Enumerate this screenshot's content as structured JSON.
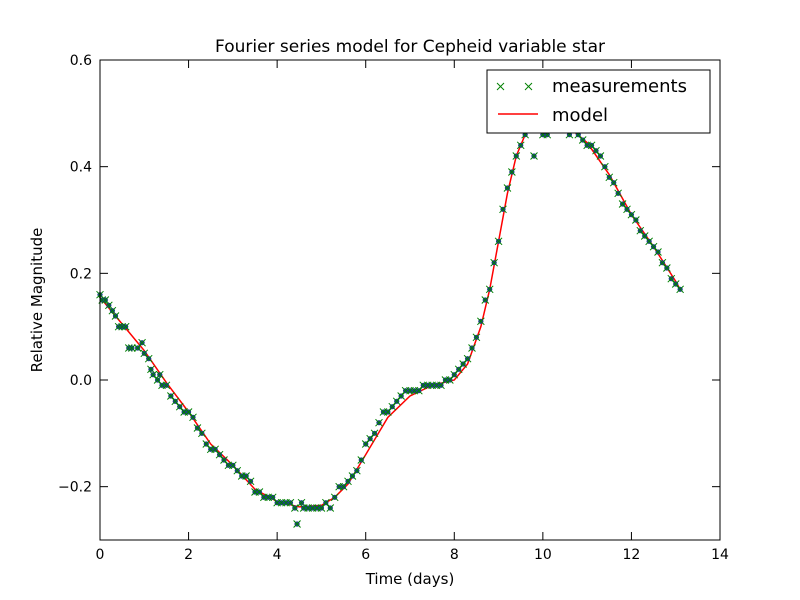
{
  "chart_data": {
    "type": "scatter",
    "title": "Fourier series model for Cepheid variable star",
    "xlabel": "Time (days)",
    "ylabel": "Relative Magnitude",
    "xlim": [
      0,
      14
    ],
    "ylim": [
      -0.3,
      0.6
    ],
    "xticks": [
      0,
      2,
      4,
      6,
      8,
      10,
      12,
      14
    ],
    "xtick_labels": [
      "0",
      "2",
      "4",
      "6",
      "8",
      "10",
      "12",
      "14"
    ],
    "yticks": [
      -0.2,
      0.0,
      0.2,
      0.4,
      0.6
    ],
    "ytick_labels": [
      "−0.2",
      "0.0",
      "0.2",
      "0.4",
      "0.6"
    ],
    "grid": false,
    "legend_position": "top-right",
    "series": [
      {
        "name": "measurements",
        "style": "markers",
        "marker": "x",
        "color": "#008000",
        "points": [
          [
            0.0,
            0.16
          ],
          [
            0.05,
            0.15
          ],
          [
            0.12,
            0.15
          ],
          [
            0.2,
            0.14
          ],
          [
            0.28,
            0.13
          ],
          [
            0.35,
            0.12
          ],
          [
            0.42,
            0.1
          ],
          [
            0.5,
            0.1
          ],
          [
            0.58,
            0.1
          ],
          [
            0.65,
            0.06
          ],
          [
            0.72,
            0.06
          ],
          [
            0.85,
            0.06
          ],
          [
            0.95,
            0.07
          ],
          [
            1.0,
            0.05
          ],
          [
            1.1,
            0.04
          ],
          [
            1.15,
            0.02
          ],
          [
            1.2,
            0.01
          ],
          [
            1.3,
            0.0
          ],
          [
            1.35,
            0.01
          ],
          [
            1.4,
            -0.01
          ],
          [
            1.5,
            -0.01
          ],
          [
            1.6,
            -0.03
          ],
          [
            1.7,
            -0.04
          ],
          [
            1.8,
            -0.05
          ],
          [
            1.9,
            -0.06
          ],
          [
            2.0,
            -0.06
          ],
          [
            2.1,
            -0.07
          ],
          [
            2.2,
            -0.09
          ],
          [
            2.3,
            -0.1
          ],
          [
            2.4,
            -0.12
          ],
          [
            2.5,
            -0.13
          ],
          [
            2.6,
            -0.13
          ],
          [
            2.7,
            -0.14
          ],
          [
            2.8,
            -0.15
          ],
          [
            2.9,
            -0.16
          ],
          [
            3.0,
            -0.16
          ],
          [
            3.1,
            -0.17
          ],
          [
            3.2,
            -0.18
          ],
          [
            3.3,
            -0.18
          ],
          [
            3.4,
            -0.19
          ],
          [
            3.5,
            -0.21
          ],
          [
            3.6,
            -0.21
          ],
          [
            3.7,
            -0.22
          ],
          [
            3.8,
            -0.22
          ],
          [
            3.9,
            -0.22
          ],
          [
            4.0,
            -0.23
          ],
          [
            4.1,
            -0.23
          ],
          [
            4.2,
            -0.23
          ],
          [
            4.3,
            -0.23
          ],
          [
            4.4,
            -0.24
          ],
          [
            4.45,
            -0.27
          ],
          [
            4.55,
            -0.23
          ],
          [
            4.6,
            -0.24
          ],
          [
            4.7,
            -0.24
          ],
          [
            4.8,
            -0.24
          ],
          [
            4.9,
            -0.24
          ],
          [
            5.0,
            -0.24
          ],
          [
            5.1,
            -0.23
          ],
          [
            5.2,
            -0.24
          ],
          [
            5.3,
            -0.22
          ],
          [
            5.4,
            -0.2
          ],
          [
            5.5,
            -0.2
          ],
          [
            5.6,
            -0.19
          ],
          [
            5.7,
            -0.18
          ],
          [
            5.8,
            -0.17
          ],
          [
            5.9,
            -0.15
          ],
          [
            6.0,
            -0.12
          ],
          [
            6.1,
            -0.11
          ],
          [
            6.2,
            -0.1
          ],
          [
            6.3,
            -0.08
          ],
          [
            6.4,
            -0.06
          ],
          [
            6.5,
            -0.06
          ],
          [
            6.6,
            -0.05
          ],
          [
            6.7,
            -0.04
          ],
          [
            6.8,
            -0.03
          ],
          [
            6.9,
            -0.02
          ],
          [
            7.0,
            -0.02
          ],
          [
            7.1,
            -0.02
          ],
          [
            7.2,
            -0.02
          ],
          [
            7.3,
            -0.01
          ],
          [
            7.4,
            -0.01
          ],
          [
            7.5,
            -0.01
          ],
          [
            7.6,
            -0.01
          ],
          [
            7.7,
            -0.01
          ],
          [
            7.8,
            0.0
          ],
          [
            7.9,
            0.0
          ],
          [
            8.0,
            0.01
          ],
          [
            8.1,
            0.02
          ],
          [
            8.2,
            0.03
          ],
          [
            8.3,
            0.04
          ],
          [
            8.4,
            0.06
          ],
          [
            8.5,
            0.08
          ],
          [
            8.6,
            0.11
          ],
          [
            8.7,
            0.15
          ],
          [
            8.8,
            0.17
          ],
          [
            8.9,
            0.22
          ],
          [
            9.0,
            0.26
          ],
          [
            9.1,
            0.32
          ],
          [
            9.2,
            0.36
          ],
          [
            9.3,
            0.39
          ],
          [
            9.4,
            0.42
          ],
          [
            9.5,
            0.44
          ],
          [
            9.6,
            0.46
          ],
          [
            9.7,
            0.48
          ],
          [
            9.8,
            0.42
          ],
          [
            10.0,
            0.46
          ],
          [
            10.1,
            0.46
          ],
          [
            10.6,
            0.46
          ],
          [
            10.8,
            0.46
          ],
          [
            10.9,
            0.45
          ],
          [
            11.0,
            0.44
          ],
          [
            11.1,
            0.44
          ],
          [
            11.2,
            0.43
          ],
          [
            11.3,
            0.42
          ],
          [
            11.4,
            0.4
          ],
          [
            11.5,
            0.38
          ],
          [
            11.6,
            0.37
          ],
          [
            11.7,
            0.35
          ],
          [
            11.8,
            0.33
          ],
          [
            11.9,
            0.32
          ],
          [
            12.0,
            0.31
          ],
          [
            12.1,
            0.3
          ],
          [
            12.2,
            0.28
          ],
          [
            12.3,
            0.27
          ],
          [
            12.4,
            0.26
          ],
          [
            12.5,
            0.25
          ],
          [
            12.6,
            0.24
          ],
          [
            12.7,
            0.22
          ],
          [
            12.8,
            0.21
          ],
          [
            12.9,
            0.19
          ],
          [
            13.0,
            0.18
          ],
          [
            13.1,
            0.17
          ]
        ]
      },
      {
        "name": "model",
        "style": "line",
        "color": "#ff0000",
        "points": [
          [
            0.0,
            0.155
          ],
          [
            0.5,
            0.105
          ],
          [
            1.0,
            0.055
          ],
          [
            1.5,
            -0.005
          ],
          [
            2.0,
            -0.06
          ],
          [
            2.5,
            -0.12
          ],
          [
            3.0,
            -0.16
          ],
          [
            3.5,
            -0.205
          ],
          [
            4.0,
            -0.228
          ],
          [
            4.5,
            -0.238
          ],
          [
            5.0,
            -0.235
          ],
          [
            5.3,
            -0.22
          ],
          [
            5.6,
            -0.195
          ],
          [
            6.0,
            -0.14
          ],
          [
            6.5,
            -0.07
          ],
          [
            7.0,
            -0.03
          ],
          [
            7.5,
            -0.01
          ],
          [
            8.0,
            0.0
          ],
          [
            8.3,
            0.03
          ],
          [
            8.6,
            0.1
          ],
          [
            8.8,
            0.17
          ],
          [
            9.0,
            0.26
          ],
          [
            9.2,
            0.35
          ],
          [
            9.4,
            0.42
          ],
          [
            9.6,
            0.46
          ],
          [
            9.8,
            0.49
          ],
          [
            10.0,
            0.495
          ],
          [
            10.2,
            0.49
          ],
          [
            10.5,
            0.48
          ],
          [
            11.0,
            0.445
          ],
          [
            11.5,
            0.385
          ],
          [
            12.0,
            0.31
          ],
          [
            12.5,
            0.25
          ],
          [
            13.0,
            0.185
          ],
          [
            13.1,
            0.17
          ]
        ]
      }
    ]
  }
}
